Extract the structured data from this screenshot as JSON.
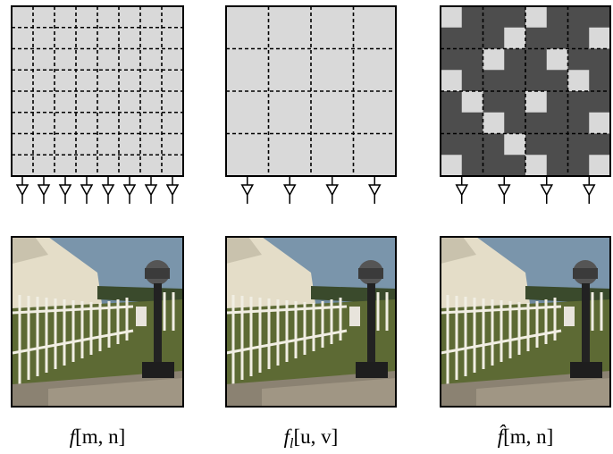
{
  "panels": [
    {
      "label": {
        "symbol": "f",
        "args": "[m, n]"
      }
    },
    {
      "label": {
        "symbol": "f",
        "subscript": "l",
        "args": "[u, v]"
      }
    },
    {
      "label": {
        "symbol": "f̂",
        "args": "[m, n]"
      }
    }
  ]
}
